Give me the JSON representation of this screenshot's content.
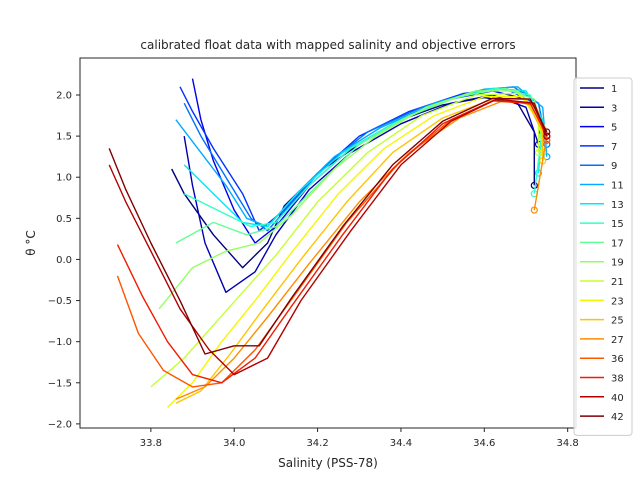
{
  "chart_data": {
    "type": "line",
    "title": "calibrated float data with mapped salinity and objective errors",
    "xlabel": "Salinity (PSS-78)",
    "ylabel": "θ °C",
    "xlim": [
      33.63,
      34.82
    ],
    "ylim": [
      -2.05,
      2.45
    ],
    "xticks": [
      "33.8",
      "34.0",
      "34.2",
      "34.4",
      "34.6",
      "34.8"
    ],
    "yticks": [
      "−2.0",
      "−1.5",
      "−1.0",
      "−0.5",
      "0.0",
      "0.5",
      "1.0",
      "1.5",
      "2.0"
    ],
    "legend_position": "right",
    "grid": false,
    "series": [
      {
        "name": "1",
        "color": "#000080",
        "points": [
          [
            33.85,
            1.1
          ],
          [
            33.88,
            0.8
          ],
          [
            33.95,
            0.3
          ],
          [
            34.02,
            -0.1
          ],
          [
            34.08,
            0.2
          ],
          [
            34.12,
            0.65
          ],
          [
            34.2,
            1.05
          ],
          [
            34.3,
            1.4
          ],
          [
            34.4,
            1.7
          ],
          [
            34.5,
            1.88
          ],
          [
            34.6,
            1.97
          ],
          [
            34.68,
            1.9
          ],
          [
            34.72,
            1.55
          ],
          [
            34.72,
            0.9
          ]
        ]
      },
      {
        "name": "3",
        "color": "#0000b2",
        "points": [
          [
            33.88,
            1.5
          ],
          [
            33.9,
            0.9
          ],
          [
            33.93,
            0.2
          ],
          [
            33.98,
            -0.4
          ],
          [
            34.05,
            -0.15
          ],
          [
            34.1,
            0.3
          ],
          [
            34.18,
            0.85
          ],
          [
            34.28,
            1.3
          ],
          [
            34.4,
            1.65
          ],
          [
            34.52,
            1.9
          ],
          [
            34.62,
            2.0
          ],
          [
            34.7,
            1.85
          ],
          [
            34.73,
            1.4
          ]
        ]
      },
      {
        "name": "5",
        "color": "#0000f1",
        "points": [
          [
            33.9,
            2.2
          ],
          [
            33.92,
            1.7
          ],
          [
            33.95,
            1.2
          ],
          [
            34.0,
            0.6
          ],
          [
            34.05,
            0.2
          ],
          [
            34.1,
            0.4
          ],
          [
            34.18,
            0.9
          ],
          [
            34.28,
            1.35
          ],
          [
            34.4,
            1.7
          ],
          [
            34.52,
            1.95
          ],
          [
            34.62,
            2.05
          ],
          [
            34.7,
            1.95
          ],
          [
            34.74,
            1.55
          ]
        ]
      },
      {
        "name": "7",
        "color": "#0034ff",
        "points": [
          [
            33.87,
            2.1
          ],
          [
            33.9,
            1.8
          ],
          [
            33.95,
            1.35
          ],
          [
            34.02,
            0.8
          ],
          [
            34.06,
            0.35
          ],
          [
            34.12,
            0.6
          ],
          [
            34.2,
            1.05
          ],
          [
            34.3,
            1.5
          ],
          [
            34.42,
            1.8
          ],
          [
            34.55,
            2.02
          ],
          [
            34.65,
            2.08
          ],
          [
            34.72,
            1.9
          ],
          [
            34.75,
            1.5
          ]
        ]
      },
      {
        "name": "9",
        "color": "#0070ff",
        "points": [
          [
            33.88,
            1.9
          ],
          [
            33.92,
            1.5
          ],
          [
            33.98,
            1.0
          ],
          [
            34.04,
            0.5
          ],
          [
            34.08,
            0.35
          ],
          [
            34.14,
            0.7
          ],
          [
            34.22,
            1.15
          ],
          [
            34.32,
            1.55
          ],
          [
            34.45,
            1.85
          ],
          [
            34.58,
            2.05
          ],
          [
            34.67,
            2.1
          ],
          [
            34.73,
            1.9
          ],
          [
            34.75,
            1.4
          ]
        ]
      },
      {
        "name": "11",
        "color": "#00acff",
        "points": [
          [
            33.86,
            1.7
          ],
          [
            33.92,
            1.3
          ],
          [
            33.98,
            0.9
          ],
          [
            34.03,
            0.5
          ],
          [
            34.08,
            0.4
          ],
          [
            34.15,
            0.8
          ],
          [
            34.24,
            1.25
          ],
          [
            34.35,
            1.6
          ],
          [
            34.48,
            1.9
          ],
          [
            34.6,
            2.07
          ],
          [
            34.68,
            2.1
          ],
          [
            34.74,
            1.85
          ],
          [
            34.75,
            1.25
          ]
        ]
      },
      {
        "name": "13",
        "color": "#02e8f4",
        "points": [
          [
            33.88,
            1.15
          ],
          [
            33.95,
            0.8
          ],
          [
            34.02,
            0.45
          ],
          [
            34.08,
            0.4
          ],
          [
            34.16,
            0.85
          ],
          [
            34.26,
            1.3
          ],
          [
            34.38,
            1.65
          ],
          [
            34.5,
            1.92
          ],
          [
            34.62,
            2.08
          ],
          [
            34.7,
            2.05
          ],
          [
            34.74,
            1.7
          ],
          [
            34.73,
            1.05
          ]
        ]
      },
      {
        "name": "15",
        "color": "#33ffc4",
        "points": [
          [
            33.88,
            0.8
          ],
          [
            33.96,
            0.6
          ],
          [
            34.04,
            0.4
          ],
          [
            34.1,
            0.45
          ],
          [
            34.18,
            0.9
          ],
          [
            34.28,
            1.35
          ],
          [
            34.4,
            1.7
          ],
          [
            34.52,
            1.95
          ],
          [
            34.63,
            2.08
          ],
          [
            34.71,
            2.0
          ],
          [
            34.74,
            1.6
          ],
          [
            34.72,
            0.8
          ]
        ]
      },
      {
        "name": "17",
        "color": "#63ff94",
        "points": [
          [
            33.86,
            0.2
          ],
          [
            33.95,
            0.45
          ],
          [
            34.03,
            0.3
          ],
          [
            34.1,
            0.4
          ],
          [
            34.2,
            0.9
          ],
          [
            34.3,
            1.4
          ],
          [
            34.42,
            1.75
          ],
          [
            34.54,
            1.98
          ],
          [
            34.65,
            2.08
          ],
          [
            34.72,
            1.95
          ],
          [
            34.74,
            1.5
          ]
        ]
      },
      {
        "name": "19",
        "color": "#94ff63",
        "points": [
          [
            33.82,
            -0.6
          ],
          [
            33.9,
            -0.1
          ],
          [
            33.98,
            0.1
          ],
          [
            34.06,
            0.2
          ],
          [
            34.14,
            0.55
          ],
          [
            34.24,
            1.1
          ],
          [
            34.34,
            1.5
          ],
          [
            34.46,
            1.85
          ],
          [
            34.58,
            2.05
          ],
          [
            34.68,
            2.05
          ],
          [
            34.73,
            1.8
          ],
          [
            34.74,
            1.3
          ]
        ]
      },
      {
        "name": "21",
        "color": "#c4ff33",
        "points": [
          [
            33.8,
            -1.55
          ],
          [
            33.88,
            -1.2
          ],
          [
            33.95,
            -0.8
          ],
          [
            34.02,
            -0.4
          ],
          [
            34.1,
            0.05
          ],
          [
            34.2,
            0.7
          ],
          [
            34.32,
            1.3
          ],
          [
            34.45,
            1.75
          ],
          [
            34.58,
            2.0
          ],
          [
            34.68,
            2.02
          ],
          [
            34.73,
            1.75
          ],
          [
            34.73,
            1.3
          ]
        ]
      },
      {
        "name": "23",
        "color": "#f4f802",
        "points": [
          [
            33.84,
            -1.8
          ],
          [
            33.9,
            -1.5
          ],
          [
            33.97,
            -1.0
          ],
          [
            34.05,
            -0.5
          ],
          [
            34.14,
            0.1
          ],
          [
            34.25,
            0.8
          ],
          [
            34.36,
            1.35
          ],
          [
            34.48,
            1.75
          ],
          [
            34.6,
            1.98
          ],
          [
            34.69,
            1.98
          ],
          [
            34.74,
            1.6
          ]
        ]
      },
      {
        "name": "25",
        "color": "#ffc400",
        "points": [
          [
            33.86,
            -1.75
          ],
          [
            33.92,
            -1.6
          ],
          [
            33.99,
            -1.15
          ],
          [
            34.07,
            -0.6
          ],
          [
            34.16,
            0.0
          ],
          [
            34.27,
            0.7
          ],
          [
            34.38,
            1.3
          ],
          [
            34.5,
            1.72
          ],
          [
            34.62,
            1.95
          ],
          [
            34.7,
            1.95
          ],
          [
            34.74,
            1.55
          ],
          [
            34.74,
            1.2
          ]
        ]
      },
      {
        "name": "27",
        "color": "#ff8d00",
        "points": [
          [
            33.86,
            -1.7
          ],
          [
            33.93,
            -1.55
          ],
          [
            34.0,
            -1.2
          ],
          [
            34.08,
            -0.7
          ],
          [
            34.18,
            -0.05
          ],
          [
            34.3,
            0.7
          ],
          [
            34.42,
            1.3
          ],
          [
            34.54,
            1.72
          ],
          [
            34.64,
            1.92
          ],
          [
            34.71,
            1.9
          ],
          [
            34.75,
            1.5
          ],
          [
            34.72,
            0.6
          ]
        ]
      },
      {
        "name": "36",
        "color": "#ff5500",
        "points": [
          [
            33.72,
            -0.2
          ],
          [
            33.77,
            -0.9
          ],
          [
            33.83,
            -1.35
          ],
          [
            33.9,
            -1.55
          ],
          [
            33.97,
            -1.5
          ],
          [
            34.05,
            -1.1
          ],
          [
            34.15,
            -0.4
          ],
          [
            34.27,
            0.45
          ],
          [
            34.4,
            1.2
          ],
          [
            34.52,
            1.7
          ],
          [
            34.63,
            1.95
          ],
          [
            34.72,
            1.88
          ],
          [
            34.75,
            1.45
          ]
        ]
      },
      {
        "name": "38",
        "color": "#f11d00",
        "points": [
          [
            33.72,
            0.18
          ],
          [
            33.78,
            -0.45
          ],
          [
            33.84,
            -1.0
          ],
          [
            33.9,
            -1.4
          ],
          [
            33.97,
            -1.5
          ],
          [
            34.05,
            -1.2
          ],
          [
            34.14,
            -0.55
          ],
          [
            34.26,
            0.3
          ],
          [
            34.38,
            1.1
          ],
          [
            34.5,
            1.65
          ],
          [
            34.62,
            1.93
          ],
          [
            34.71,
            1.9
          ],
          [
            34.75,
            1.5
          ]
        ]
      },
      {
        "name": "40",
        "color": "#b20000",
        "points": [
          [
            33.7,
            1.15
          ],
          [
            33.74,
            0.7
          ],
          [
            33.8,
            0.1
          ],
          [
            33.87,
            -0.6
          ],
          [
            33.94,
            -1.1
          ],
          [
            34.0,
            -1.4
          ],
          [
            34.08,
            -1.2
          ],
          [
            34.16,
            -0.5
          ],
          [
            34.28,
            0.35
          ],
          [
            34.4,
            1.15
          ],
          [
            34.52,
            1.68
          ],
          [
            34.63,
            1.95
          ],
          [
            34.72,
            1.9
          ],
          [
            34.75,
            1.5
          ]
        ]
      },
      {
        "name": "42",
        "color": "#800000",
        "points": [
          [
            33.7,
            1.35
          ],
          [
            33.74,
            0.85
          ],
          [
            33.8,
            0.2
          ],
          [
            33.87,
            -0.5
          ],
          [
            33.93,
            -1.15
          ],
          [
            34.0,
            -1.05
          ],
          [
            34.06,
            -1.05
          ],
          [
            34.14,
            -0.45
          ],
          [
            34.26,
            0.4
          ],
          [
            34.38,
            1.15
          ],
          [
            34.5,
            1.68
          ],
          [
            34.62,
            1.96
          ],
          [
            34.71,
            1.95
          ],
          [
            34.75,
            1.55
          ]
        ]
      }
    ]
  }
}
